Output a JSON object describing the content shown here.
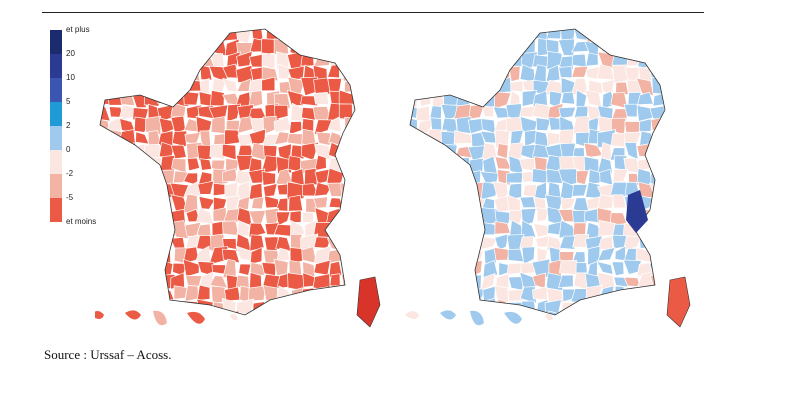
{
  "legend": {
    "ticks": [
      "et plus",
      "20",
      "10",
      "5",
      "2",
      "0",
      "-2",
      "-5",
      "et moins"
    ],
    "colors": [
      "#1c2a6e",
      "#2b3b93",
      "#3a56b0",
      "#1f9ad6",
      "#9fcaee",
      "#fbe6e1",
      "#f3b3a4",
      "#ea5a45"
    ]
  },
  "maps": [
    {
      "name": "left",
      "palette": [
        "#ea5a45",
        "#f3b3a4",
        "#fbe6e1"
      ]
    },
    {
      "name": "right",
      "palette": [
        "#9fcaee",
        "#fbe6e1",
        "#f3b3a4"
      ]
    }
  ],
  "source": "Source : Urssaf – Acoss."
}
